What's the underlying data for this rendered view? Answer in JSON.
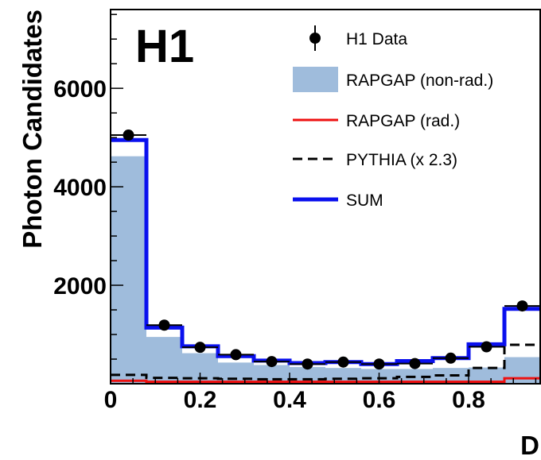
{
  "chart_data": {
    "type": "histogram",
    "experiment_label": "H1",
    "xlabel": "D",
    "ylabel": "Photon Candidates",
    "xlim": [
      0,
      0.96
    ],
    "ylim": [
      0,
      7600
    ],
    "bin_edges": [
      0,
      0.08,
      0.16,
      0.24,
      0.32,
      0.4,
      0.48,
      0.56,
      0.64,
      0.72,
      0.8,
      0.88,
      0.96
    ],
    "x_ticks": [
      {
        "value": 0,
        "label": "0"
      },
      {
        "value": 0.2,
        "label": "0.2"
      },
      {
        "value": 0.4,
        "label": "0.4"
      },
      {
        "value": 0.6,
        "label": "0.6"
      },
      {
        "value": 0.8,
        "label": "0.8"
      }
    ],
    "y_ticks": [
      {
        "value": 2000,
        "label": "2000"
      },
      {
        "value": 4000,
        "label": "4000"
      },
      {
        "value": 6000,
        "label": "6000"
      }
    ],
    "legend": [
      {
        "key": "data",
        "label": "H1 Data"
      },
      {
        "key": "nonrad",
        "label": "RAPGAP (non-rad.)"
      },
      {
        "key": "rad",
        "label": "RAPGAP (rad.)"
      },
      {
        "key": "pythia",
        "label": "PYTHIA (x 2.3)"
      },
      {
        "key": "sum",
        "label": "SUM"
      }
    ],
    "series": [
      {
        "key": "nonrad",
        "style": "filled",
        "color": "#9fbcdc",
        "values": [
          4620,
          950,
          620,
          430,
          380,
          340,
          320,
          300,
          300,
          320,
          330,
          540
        ]
      },
      {
        "key": "rad",
        "style": "line",
        "color": "#ee1111",
        "values": [
          60,
          40,
          40,
          40,
          40,
          40,
          40,
          40,
          40,
          40,
          40,
          110
        ]
      },
      {
        "key": "pythia",
        "style": "dashed",
        "color": "#000000",
        "values": [
          180,
          120,
          110,
          100,
          90,
          90,
          100,
          110,
          140,
          170,
          320,
          790
        ]
      },
      {
        "key": "sum",
        "style": "line",
        "color": "#0a10ee",
        "values": [
          4950,
          1140,
          760,
          560,
          470,
          420,
          440,
          400,
          460,
          520,
          800,
          1520
        ]
      },
      {
        "key": "data",
        "style": "points",
        "color": "#000000",
        "x": [
          0.04,
          0.12,
          0.2,
          0.28,
          0.36,
          0.44,
          0.52,
          0.6,
          0.68,
          0.76,
          0.84,
          0.92
        ],
        "values": [
          5050,
          1190,
          740,
          590,
          450,
          400,
          440,
          400,
          410,
          520,
          750,
          1580
        ]
      }
    ]
  }
}
